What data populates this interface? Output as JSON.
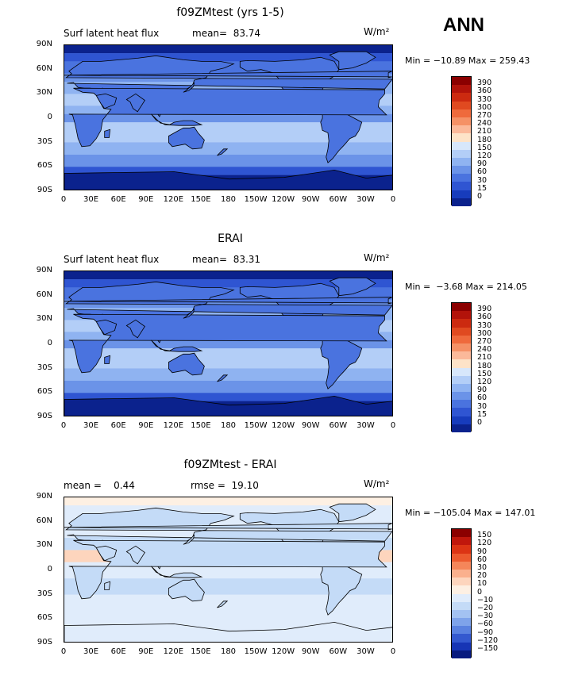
{
  "season": "ANN",
  "panels": [
    {
      "title": "f09ZMtest (yrs 1-5)",
      "variable": "Surf latent heat flux",
      "stat_text": "mean=  83.74",
      "units": "W/m²",
      "min_max": "Min = −10.89 Max = 259.43",
      "colorbar_labels": [
        "390",
        "360",
        "330",
        "300",
        "270",
        "240",
        "210",
        "180",
        "150",
        "120",
        "90",
        "60",
        "30",
        "15",
        "0"
      ],
      "colorbar_colors": [
        "#8b0000",
        "#b2130a",
        "#cc2a10",
        "#e04a20",
        "#ef6a3c",
        "#f59166",
        "#fbb99a",
        "#fde3c8",
        "#d7e7fb",
        "#b3cef7",
        "#8fb3f1",
        "#6b93e8",
        "#4a73df",
        "#2f55d2",
        "#173cbc",
        "#0b228d"
      ]
    },
    {
      "title": "ERAI",
      "variable": "Surf latent heat flux",
      "stat_text": "mean=  83.31",
      "units": "W/m²",
      "min_max": "Min =  −3.68 Max = 214.05",
      "colorbar_labels": [
        "390",
        "360",
        "330",
        "300",
        "270",
        "240",
        "210",
        "180",
        "150",
        "120",
        "90",
        "60",
        "30",
        "15",
        "0"
      ],
      "colorbar_colors": [
        "#8b0000",
        "#b2130a",
        "#cc2a10",
        "#e04a20",
        "#ef6a3c",
        "#f59166",
        "#fbb99a",
        "#fde3c8",
        "#d7e7fb",
        "#b3cef7",
        "#8fb3f1",
        "#6b93e8",
        "#4a73df",
        "#2f55d2",
        "#173cbc",
        "#0b228d"
      ]
    },
    {
      "title": "f09ZMtest - ERAI",
      "variable": "mean =    0.44",
      "stat_text": "rmse =  19.10",
      "units": "W/m²",
      "min_max": "Min = −105.04 Max = 147.01",
      "colorbar_labels": [
        "150",
        "120",
        "90",
        "60",
        "30",
        "20",
        "10",
        "0",
        "−10",
        "−20",
        "−30",
        "−60",
        "−90",
        "−120",
        "−150"
      ],
      "colorbar_colors": [
        "#8b0000",
        "#c0170c",
        "#dc3414",
        "#ec5a2e",
        "#f5865a",
        "#fab08d",
        "#fdd5bd",
        "#fdf0e3",
        "#e0ecfb",
        "#c4dbf7",
        "#a3c2f2",
        "#7ea3ea",
        "#5a82e0",
        "#3459cf",
        "#1735b5",
        "#071a7f"
      ]
    }
  ],
  "lat_labels": [
    "90N",
    "60N",
    "30N",
    "0",
    "30S",
    "60S",
    "90S"
  ],
  "lon_labels": [
    "0",
    "30E",
    "60E",
    "90E",
    "120E",
    "150E",
    "180",
    "150W",
    "120W",
    "90W",
    "60W",
    "30W",
    "0"
  ]
}
